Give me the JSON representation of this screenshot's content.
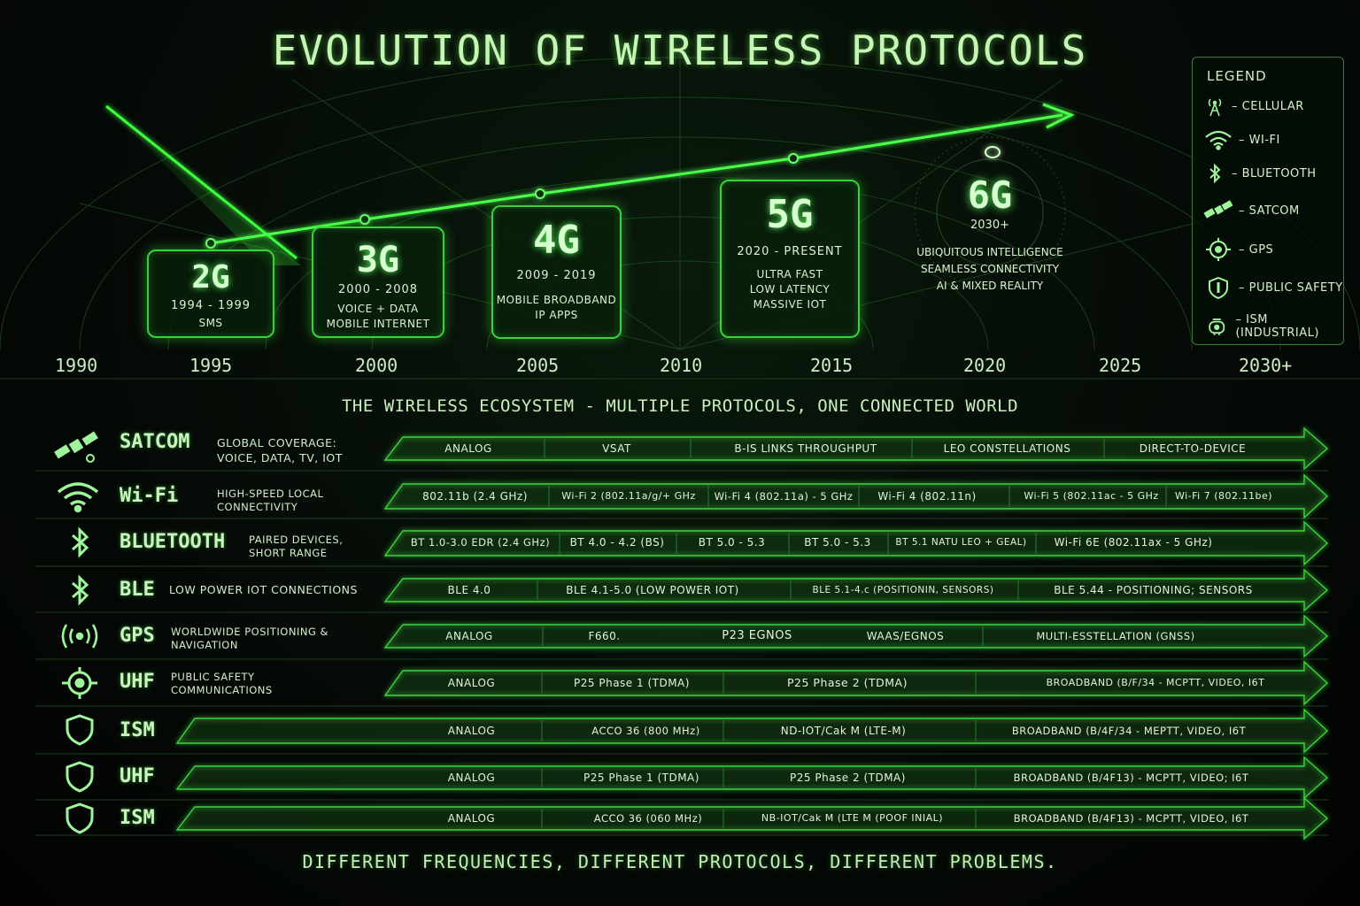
{
  "title": "EVOLUTION OF WIRELESS PROTOCOLS",
  "eras": [
    {
      "gen": "2G",
      "years": "1994 - 1999",
      "desc": [
        "SMS"
      ]
    },
    {
      "gen": "3G",
      "years": "2000 - 2008",
      "desc": [
        "VOICE + DATA",
        "MOBILE INTERNET"
      ]
    },
    {
      "gen": "4G",
      "years": "2009 - 2019",
      "desc": [
        "MOBILE BROADBAND",
        "IP APPS"
      ]
    },
    {
      "gen": "5G",
      "years": "2020 - PRESENT",
      "desc": [
        "ULTRA FAST",
        "LOW LATENCY",
        "MASSIVE IOT"
      ]
    },
    {
      "gen": "6G",
      "years": "2030+",
      "desc": [
        "UBIQUITOUS INTELLIGENCE",
        "SEAMLESS CONNECTIVITY",
        "AI & MIXED REALITY"
      ]
    }
  ],
  "timeline_years": [
    "1990",
    "1995",
    "2000",
    "2005",
    "2010",
    "2015",
    "2020",
    "2025",
    "2030+"
  ],
  "legend": {
    "title": "LEGEND",
    "items": [
      {
        "icon": "cellular-tower-icon",
        "label": "– CELLULAR"
      },
      {
        "icon": "wifi-icon",
        "label": "– WI-FI"
      },
      {
        "icon": "bluetooth-icon",
        "label": "– BLUETOOTH"
      },
      {
        "icon": "satellite-icon",
        "label": "– SATCOM"
      },
      {
        "icon": "crosshair-icon",
        "label": "– GPS"
      },
      {
        "icon": "shield-icon",
        "label": "– PUBLIC SAFETY"
      },
      {
        "icon": "ism-industrial-icon",
        "label": "– ISM (INDUSTRIAL)"
      }
    ]
  },
  "ecosystem_title": "THE WIRELESS ECOSYSTEM - MULTIPLE PROTOCOLS, ONE CONNECTED WORLD",
  "rows": [
    {
      "icon": "satellite-icon",
      "name": "SATCOM",
      "desc": [
        "GLOBAL COVERAGE:",
        "VOICE, DATA, TV, IOT"
      ],
      "segments": [
        "ANALOG",
        "VSAT",
        "B-IS LINKS THROUGHPUT",
        "LEO CONSTELLATIONS",
        "DIRECT-TO-DEVICE"
      ]
    },
    {
      "icon": "wifi-icon",
      "name": "Wi-Fi",
      "desc": [
        "HIGH-SPEED LOCAL",
        "CONNECTIVITY"
      ],
      "segments": [
        "802.11b (2.4 GHz)",
        "Wi-Fi 2 (802.11a/g/+ GHz",
        "Wi-Fi 4 (802.11a) - 5 GHz",
        "Wi-Fi 4 (802.11n)",
        "Wi-Fi 5 (802.11ac - 5 GHz",
        "Wi-Fi 7 (802.11be)"
      ]
    },
    {
      "icon": "bluetooth-icon",
      "name": "BLUETOOTH",
      "desc": [
        "PAIRED DEVICES,",
        "SHORT RANGE"
      ],
      "segments": [
        "BT 1.0-3.0 EDR (2.4 GHz)",
        "BT 4.0 - 4.2 (BS)",
        "BT 5.0 - 5.3",
        "BT 5.0 - 5.3",
        "BT 5.1 NATU LEO + GEAL)",
        "Wi-Fi 6E (802.11ax - 5 GHz)"
      ]
    },
    {
      "icon": "bluetooth-icon",
      "name": "BLE",
      "desc": [
        "LOW POWER IOT CONNECTIONS"
      ],
      "segments": [
        "BLE 4.0",
        "BLE 4.1-5.0 (LOW POWER IOT)",
        "BLE 5.1-4.c (POSITIONIN, SENSORS)",
        "BLE 5.44 - POSITIONING; SENSORS"
      ]
    },
    {
      "icon": "radio-signal-icon",
      "name": "GPS",
      "desc": [
        "WORLDWIDE POSITIONING &",
        "NAVIGATION"
      ],
      "segments": [
        "ANALOG",
        "F660.",
        "P23 EGNOS",
        "WAAS/EGNOS",
        "MULTI-ESSTELLATION (GNSS)"
      ]
    },
    {
      "icon": "crosshair-icon",
      "name": "UHF",
      "desc": [
        "PUBLIC SAFETY",
        "COMMUNICATIONS"
      ],
      "segments": [
        "ANALOG",
        "P25 Phase 1 (TDMA)",
        "P25 Phase 2 (TDMA)",
        "BROADBAND (B/F/34 - MCPTT, VIDEO, I6T"
      ]
    },
    {
      "icon": "shield-icon",
      "name": "ISM",
      "desc": [],
      "segments": [
        "ANALOG",
        "ACCO 36 (800 MHz)",
        "ND-IOT/Cak M (LTE-M)",
        "BROADBAND (B/4F/34 - MEPTT, VIDEO, I6T"
      ]
    },
    {
      "icon": "shield-icon",
      "name": "UHF",
      "desc": [],
      "segments": [
        "ANALOG",
        "P25 Phase 1 (TDMA)",
        "P25 Phase 2 (TDMA)",
        "BROADBAND (B/4F13) - MCPTT, VIDEO; I6T"
      ]
    },
    {
      "icon": "shield-icon",
      "name": "ISM",
      "desc": [],
      "segments": [
        "ANALOG",
        "ACCO 36 (060 MHz)",
        "NB-IOT/Cak M (LTE M (POOF INIAL)",
        "BROADBAND (B/4F13) - MCPTT, VIDEO, I6T"
      ]
    }
  ],
  "footer": "DIFFERENT FREQUENCIES, DIFFERENT PROTOCOLS, DIFFERENT PROBLEMS.",
  "colors": {
    "accent": "#3cff3c",
    "glow": "#5cff5c",
    "text": "#c8f5bd",
    "background": "#050a06"
  }
}
